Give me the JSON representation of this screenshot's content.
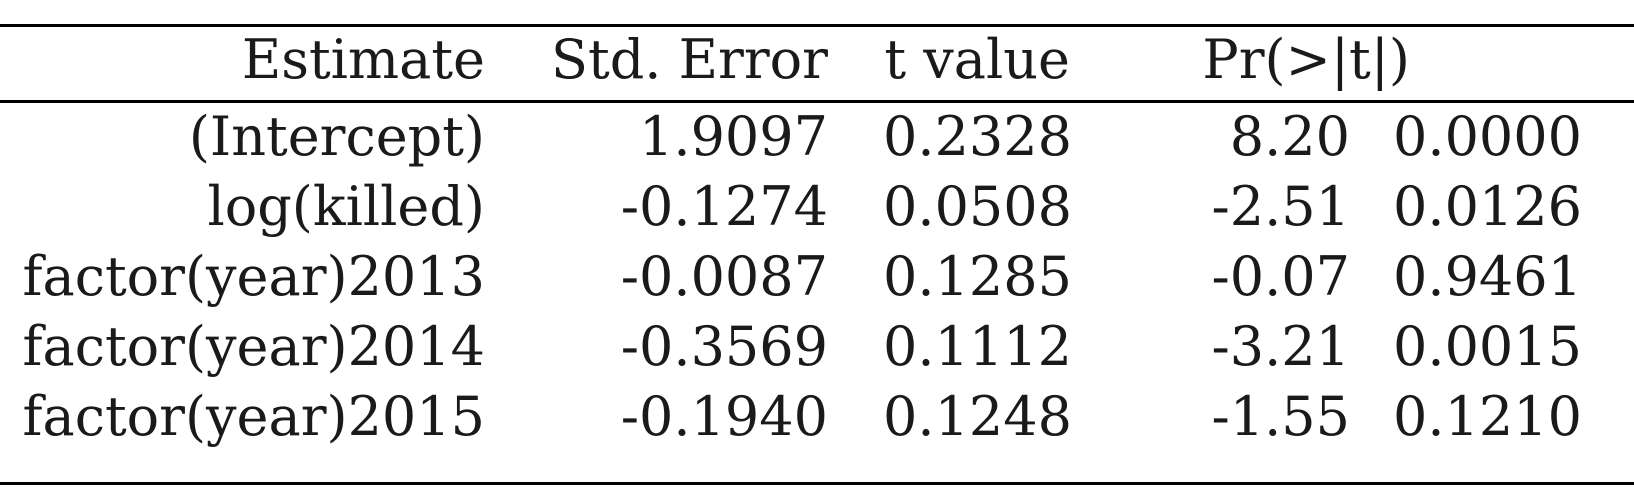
{
  "table": {
    "headers": [
      "Estimate",
      "Std. Error",
      "t value",
      "Pr(>|t|)"
    ],
    "rows": [
      {
        "term": "(Intercept)",
        "values": [
          "1.9097",
          "0.2328",
          "8.20",
          "0.0000"
        ]
      },
      {
        "term": "log(killed)",
        "values": [
          "-0.1274",
          "0.0508",
          "-2.51",
          "0.0126"
        ]
      },
      {
        "term": "factor(year)2013",
        "values": [
          "-0.0087",
          "0.1285",
          "-0.07",
          "0.9461"
        ]
      },
      {
        "term": "factor(year)2014",
        "values": [
          "-0.3569",
          "0.1112",
          "-3.21",
          "0.0015"
        ]
      },
      {
        "term": "factor(year)2015",
        "values": [
          "-0.1940",
          "0.1248",
          "-1.55",
          "0.1210"
        ]
      }
    ]
  }
}
